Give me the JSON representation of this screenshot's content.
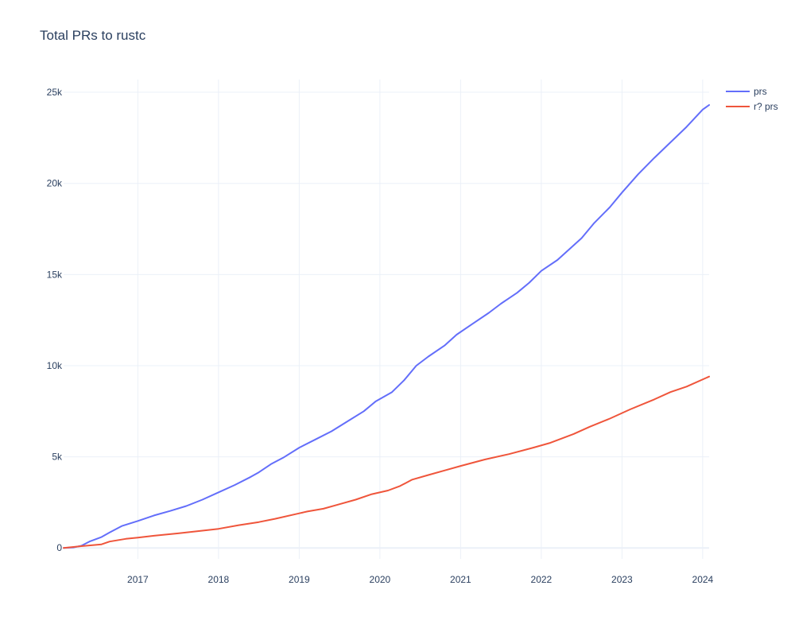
{
  "chart_data": {
    "type": "line",
    "title": "Total PRs to rustc",
    "xlabel": "",
    "ylabel": "",
    "grid": true,
    "legend_position": "top-right",
    "xlim": [
      2016.08,
      2024.08
    ],
    "ylim": [
      -600,
      25700
    ],
    "x_ticks": [
      {
        "value": 2017,
        "label": "2017"
      },
      {
        "value": 2018,
        "label": "2018"
      },
      {
        "value": 2019,
        "label": "2019"
      },
      {
        "value": 2020,
        "label": "2020"
      },
      {
        "value": 2021,
        "label": "2021"
      },
      {
        "value": 2022,
        "label": "2022"
      },
      {
        "value": 2023,
        "label": "2023"
      },
      {
        "value": 2024,
        "label": "2024"
      }
    ],
    "y_ticks": [
      {
        "value": 0,
        "label": "0"
      },
      {
        "value": 5000,
        "label": "5k"
      },
      {
        "value": 10000,
        "label": "10k"
      },
      {
        "value": 15000,
        "label": "15k"
      },
      {
        "value": 20000,
        "label": "20k"
      },
      {
        "value": 25000,
        "label": "25k"
      }
    ],
    "series": [
      {
        "name": "prs",
        "color": "#636efa",
        "points": [
          [
            2016.08,
            0
          ],
          [
            2016.2,
            30
          ],
          [
            2016.3,
            120
          ],
          [
            2016.4,
            350
          ],
          [
            2016.55,
            600
          ],
          [
            2016.65,
            850
          ],
          [
            2016.8,
            1200
          ],
          [
            2017.0,
            1480
          ],
          [
            2017.2,
            1780
          ],
          [
            2017.4,
            2030
          ],
          [
            2017.6,
            2300
          ],
          [
            2017.8,
            2650
          ],
          [
            2018.0,
            3050
          ],
          [
            2018.2,
            3450
          ],
          [
            2018.4,
            3900
          ],
          [
            2018.5,
            4150
          ],
          [
            2018.65,
            4600
          ],
          [
            2018.8,
            4950
          ],
          [
            2019.0,
            5500
          ],
          [
            2019.2,
            5950
          ],
          [
            2019.4,
            6400
          ],
          [
            2019.6,
            6950
          ],
          [
            2019.8,
            7500
          ],
          [
            2019.95,
            8050
          ],
          [
            2020.15,
            8550
          ],
          [
            2020.3,
            9200
          ],
          [
            2020.45,
            10000
          ],
          [
            2020.6,
            10500
          ],
          [
            2020.8,
            11100
          ],
          [
            2020.95,
            11700
          ],
          [
            2021.15,
            12300
          ],
          [
            2021.35,
            12900
          ],
          [
            2021.5,
            13400
          ],
          [
            2021.7,
            14000
          ],
          [
            2021.85,
            14550
          ],
          [
            2022.0,
            15200
          ],
          [
            2022.2,
            15800
          ],
          [
            2022.35,
            16400
          ],
          [
            2022.5,
            17000
          ],
          [
            2022.65,
            17800
          ],
          [
            2022.85,
            18700
          ],
          [
            2023.0,
            19500
          ],
          [
            2023.2,
            20500
          ],
          [
            2023.4,
            21400
          ],
          [
            2023.6,
            22250
          ],
          [
            2023.8,
            23100
          ],
          [
            2024.0,
            24050
          ],
          [
            2024.08,
            24300
          ]
        ]
      },
      {
        "name": "r? prs",
        "color": "#ef553b",
        "points": [
          [
            2016.08,
            0
          ],
          [
            2016.3,
            100
          ],
          [
            2016.55,
            200
          ],
          [
            2016.65,
            350
          ],
          [
            2016.85,
            500
          ],
          [
            2017.0,
            570
          ],
          [
            2017.2,
            670
          ],
          [
            2017.5,
            800
          ],
          [
            2017.8,
            950
          ],
          [
            2018.0,
            1050
          ],
          [
            2018.25,
            1250
          ],
          [
            2018.5,
            1420
          ],
          [
            2018.7,
            1600
          ],
          [
            2019.0,
            1900
          ],
          [
            2019.1,
            2000
          ],
          [
            2019.3,
            2150
          ],
          [
            2019.5,
            2400
          ],
          [
            2019.7,
            2650
          ],
          [
            2019.9,
            2950
          ],
          [
            2020.1,
            3150
          ],
          [
            2020.25,
            3400
          ],
          [
            2020.4,
            3750
          ],
          [
            2020.6,
            4000
          ],
          [
            2020.8,
            4250
          ],
          [
            2021.0,
            4500
          ],
          [
            2021.3,
            4850
          ],
          [
            2021.6,
            5150
          ],
          [
            2021.9,
            5500
          ],
          [
            2022.1,
            5750
          ],
          [
            2022.4,
            6250
          ],
          [
            2022.6,
            6650
          ],
          [
            2022.85,
            7100
          ],
          [
            2023.1,
            7600
          ],
          [
            2023.4,
            8150
          ],
          [
            2023.6,
            8550
          ],
          [
            2023.8,
            8850
          ],
          [
            2024.08,
            9400
          ]
        ]
      }
    ]
  }
}
